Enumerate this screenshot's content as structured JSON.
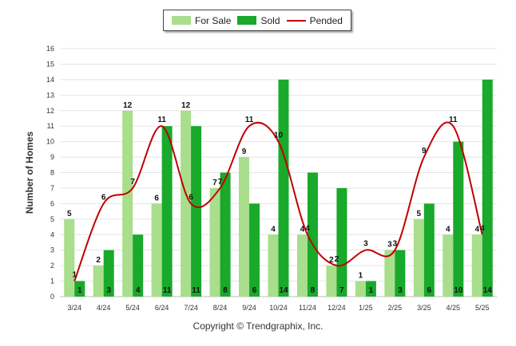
{
  "legend": {
    "for_sale": "For Sale",
    "sold": "Sold",
    "pended": "Pended"
  },
  "footer": {
    "copyright": "Copyright © Trendgraphix, Inc."
  },
  "colors": {
    "for_sale": "#a8de8c",
    "sold": "#19a92b",
    "pended": "#c00000",
    "grid": "#e4e4e4"
  },
  "chart_data": {
    "type": "bar",
    "ylabel": "Number of Homes",
    "xlabel": "",
    "ylim": [
      0,
      16
    ],
    "yticks": [
      0,
      1,
      2,
      3,
      4,
      5,
      6,
      7,
      8,
      9,
      10,
      11,
      12,
      13,
      14,
      15,
      16
    ],
    "grid": true,
    "legend_position": "top-center",
    "categories": [
      "3/24",
      "4/24",
      "5/24",
      "6/24",
      "7/24",
      "8/24",
      "9/24",
      "10/24",
      "11/24",
      "12/24",
      "1/25",
      "2/25",
      "3/25",
      "4/25",
      "5/25"
    ],
    "series": [
      {
        "name": "For Sale",
        "type": "bar",
        "values": [
          5,
          2,
          12,
          6,
          12,
          7,
          9,
          4,
          4,
          2,
          1,
          3,
          5,
          4,
          4
        ]
      },
      {
        "name": "Sold",
        "type": "bar",
        "values": [
          1,
          3,
          4,
          11,
          11,
          8,
          6,
          14,
          8,
          7,
          1,
          3,
          6,
          10,
          14
        ]
      },
      {
        "name": "Pended",
        "type": "line",
        "values": [
          1,
          6,
          7,
          11,
          6,
          7,
          11,
          10,
          4,
          2,
          3,
          3,
          9,
          11,
          4
        ]
      }
    ]
  }
}
